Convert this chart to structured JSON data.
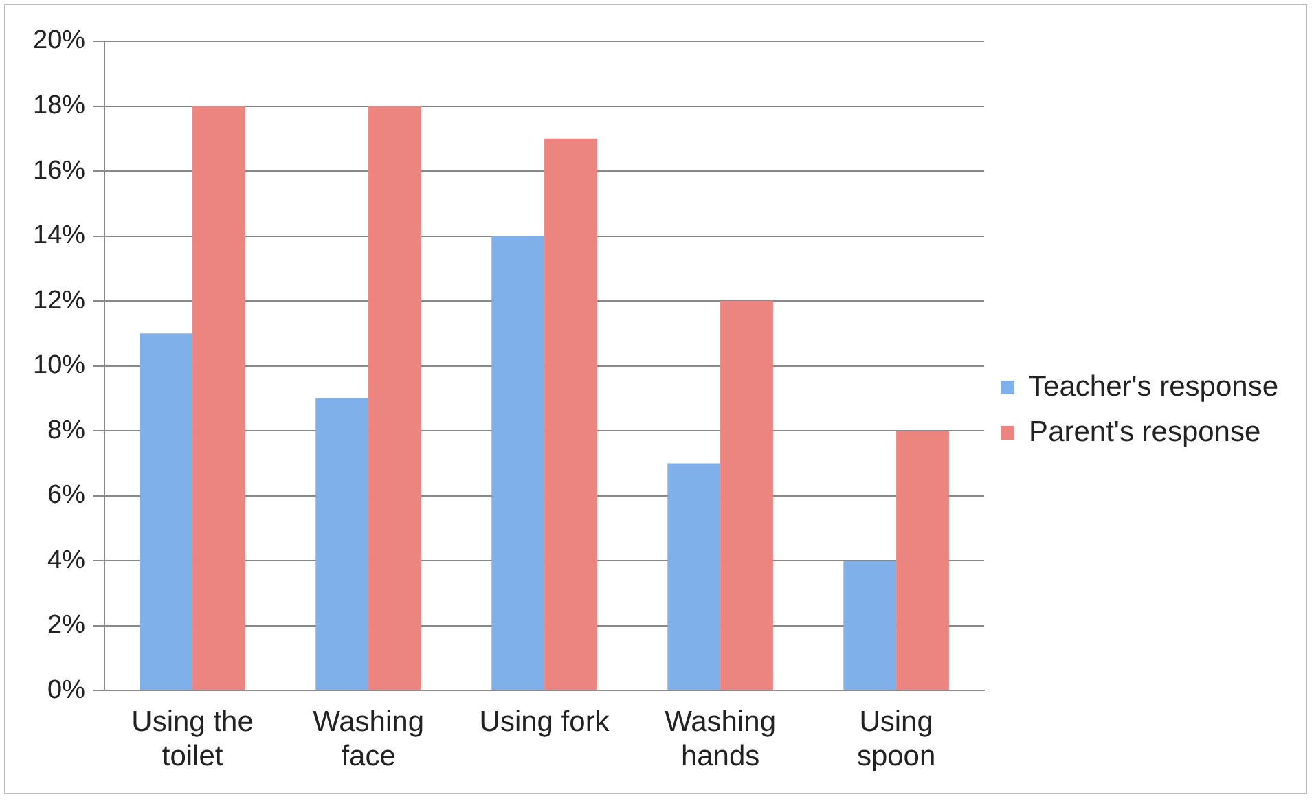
{
  "chart_data": {
    "type": "bar",
    "categories": [
      "Using the toilet",
      "Washing face",
      "Using fork",
      "Washing hands",
      "Using spoon"
    ],
    "series": [
      {
        "name": "Teacher's response",
        "color": "#7fb0ea",
        "values": [
          11,
          9,
          14,
          7,
          4
        ]
      },
      {
        "name": "Parent's response",
        "color": "#ec8580",
        "values": [
          18,
          18,
          17,
          12,
          8
        ]
      }
    ],
    "ylim": [
      0,
      20
    ],
    "yticks": [
      {
        "value": 0,
        "label": "0%"
      },
      {
        "value": 2,
        "label": "2%"
      },
      {
        "value": 4,
        "label": "4%"
      },
      {
        "value": 6,
        "label": "6%"
      },
      {
        "value": 8,
        "label": "8%"
      },
      {
        "value": 10,
        "label": "10%"
      },
      {
        "value": 12,
        "label": "12%"
      },
      {
        "value": 14,
        "label": "14%"
      },
      {
        "value": 16,
        "label": "16%"
      },
      {
        "value": 18,
        "label": "18%"
      },
      {
        "value": 20,
        "label": "20%"
      }
    ],
    "grid": "y",
    "legend": "right"
  }
}
